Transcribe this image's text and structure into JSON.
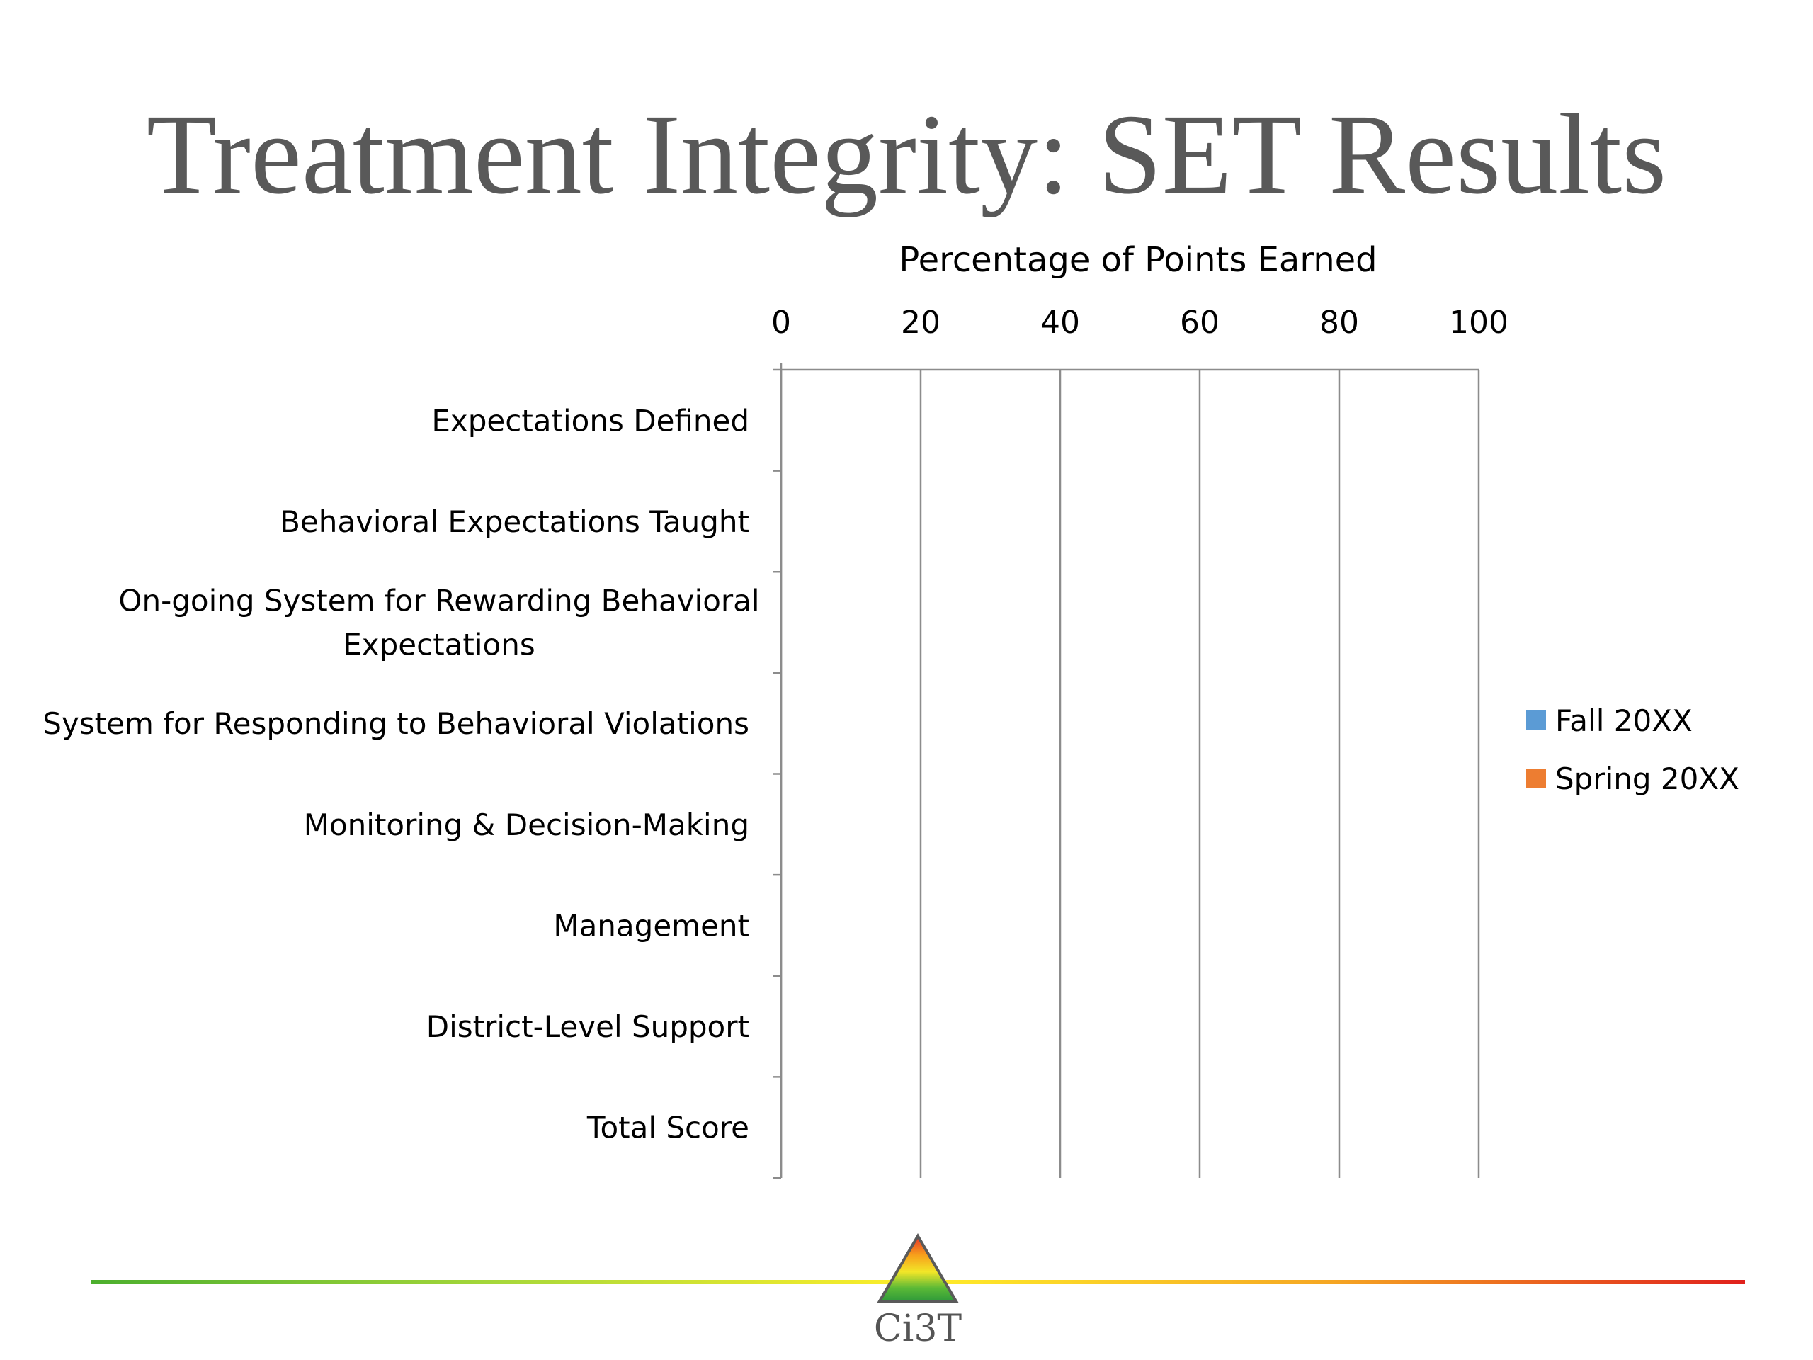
{
  "slide": {
    "title": "Treatment Integrity: SET Results",
    "logo_text": "Ci3T"
  },
  "chart_data": {
    "type": "bar",
    "orientation": "horizontal",
    "title": "",
    "xlabel": "Percentage of Points Earned",
    "ylabel": "",
    "xlim": [
      0,
      100
    ],
    "x_ticks": [
      0,
      20,
      40,
      60,
      80,
      100
    ],
    "x_axis_position": "top",
    "grid": true,
    "legend_position": "right",
    "categories": [
      "Expectations Defined",
      "Behavioral Expectations Taught",
      "On-going System for Rewarding Behavioral Expectations",
      "System for Responding to Behavioral Violations",
      "Monitoring & Decision-Making",
      "Management",
      "District-Level Support",
      "Total Score"
    ],
    "series": [
      {
        "name": "Fall 20XX",
        "color": "#5B9BD5",
        "values": [
          null,
          null,
          null,
          null,
          null,
          null,
          null,
          null
        ]
      },
      {
        "name": "Spring 20XX",
        "color": "#ED7D31",
        "values": [
          null,
          null,
          null,
          null,
          null,
          null,
          null,
          null
        ]
      }
    ]
  }
}
